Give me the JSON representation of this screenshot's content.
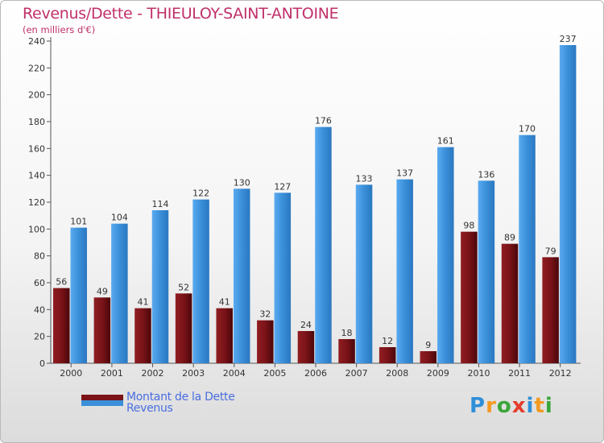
{
  "chart_data": {
    "type": "bar",
    "title": "Revenus/Dette - THIEULOY-SAINT-ANTOINE",
    "subtitle": "(en milliers d'€)",
    "categories": [
      "2000",
      "2001",
      "2002",
      "2003",
      "2004",
      "2005",
      "2006",
      "2007",
      "2008",
      "2009",
      "2010",
      "2011",
      "2012"
    ],
    "series": [
      {
        "name": "Montant de la Dette",
        "color": "#7a1318",
        "values": [
          56,
          49,
          41,
          52,
          41,
          32,
          24,
          18,
          12,
          9,
          98,
          89,
          79
        ]
      },
      {
        "name": "Revenus",
        "color": "#3a8fd9",
        "values": [
          101,
          104,
          114,
          122,
          130,
          127,
          176,
          133,
          137,
          161,
          136,
          170,
          237
        ]
      }
    ],
    "ylim": [
      0,
      240
    ],
    "yticks": [
      0,
      20,
      40,
      60,
      80,
      100,
      120,
      140,
      160,
      180,
      200,
      220,
      240
    ],
    "xlabel": "",
    "ylabel": "",
    "grid": false,
    "legend_position": "bottom-left"
  },
  "branding": {
    "logo_letters": [
      "P",
      "r",
      "o",
      "x",
      "i",
      "t",
      "i"
    ],
    "logo_colors": [
      "#2f8fd8",
      "#f39a1f",
      "#3aa63a",
      "#e53b2c",
      "#2f8fd8",
      "#f39a1f",
      "#3aa63a"
    ]
  }
}
